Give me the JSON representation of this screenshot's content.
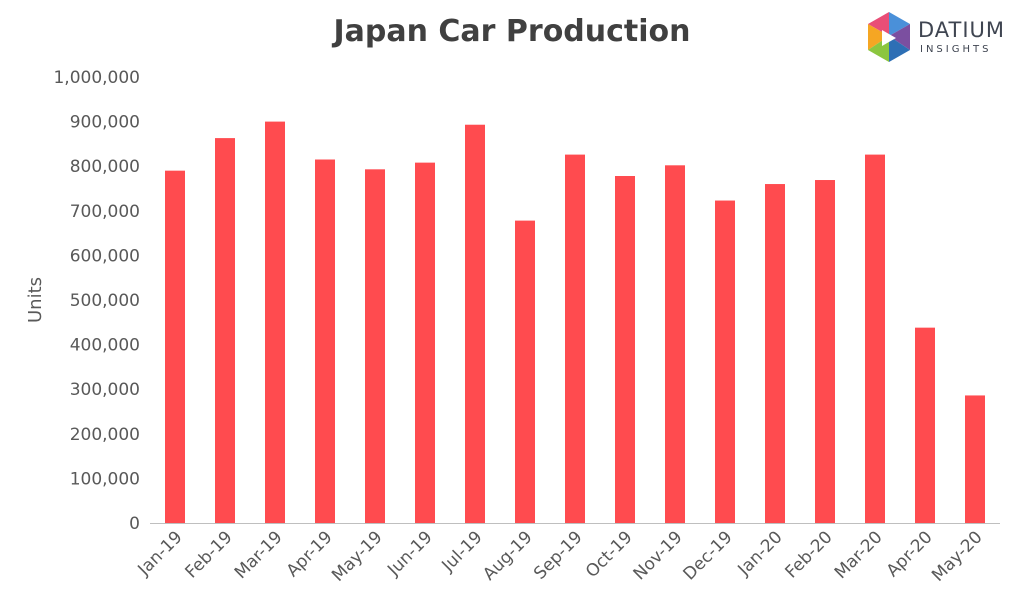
{
  "logo": {
    "word": "DATIUM",
    "sub": "INSIGHTS"
  },
  "colors": {
    "bar": "#ff4b4f",
    "axis": "#bfbfbf",
    "text": "#595959",
    "title": "#404040"
  },
  "chart_data": {
    "type": "bar",
    "title": "Japan Car Production",
    "xlabel": "",
    "ylabel": "Units",
    "ylim": [
      0,
      1000000
    ],
    "yticks": [
      0,
      100000,
      200000,
      300000,
      400000,
      500000,
      600000,
      700000,
      800000,
      900000,
      1000000
    ],
    "ytick_labels": [
      "0",
      "100,000",
      "200,000",
      "300,000",
      "400,000",
      "500,000",
      "600,000",
      "700,000",
      "800,000",
      "900,000",
      "1,000,000"
    ],
    "grid": false,
    "categories": [
      "Jan-19",
      "Feb-19",
      "Mar-19",
      "Apr-19",
      "May-19",
      "Jun-19",
      "Jul-19",
      "Aug-19",
      "Sep-19",
      "Oct-19",
      "Nov-19",
      "Dec-19",
      "Jan-20",
      "Feb-20",
      "Mar-20",
      "Apr-20",
      "May-20"
    ],
    "values": [
      790000,
      863000,
      900000,
      815000,
      793000,
      808000,
      893000,
      678000,
      826000,
      778000,
      802000,
      723000,
      760000,
      769000,
      826000,
      438000,
      286000
    ]
  }
}
